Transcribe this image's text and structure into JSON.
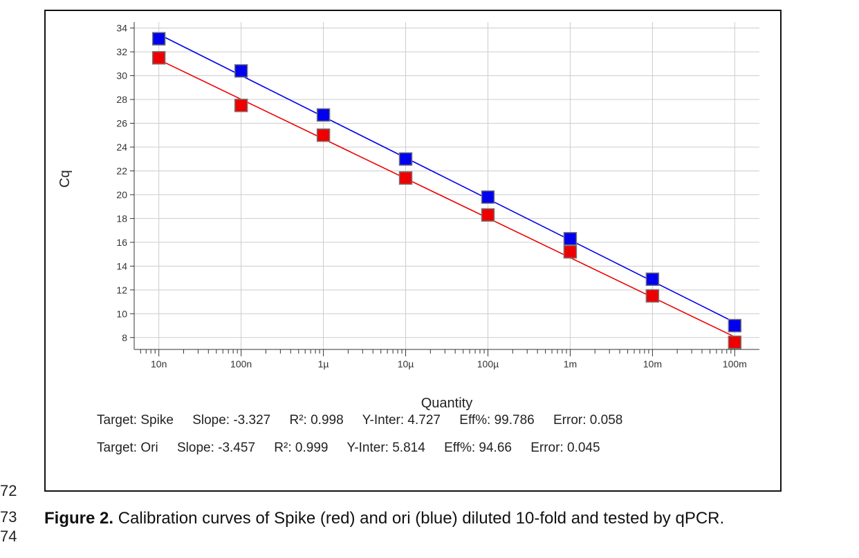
{
  "chart_data": {
    "type": "scatter",
    "xscale": "log",
    "xlabel": "Quantity",
    "ylabel": "Cq",
    "ylim": [
      7,
      34.5
    ],
    "xlim_exp": [
      -8.3,
      -0.7
    ],
    "yticks": [
      8,
      10,
      12,
      14,
      16,
      18,
      20,
      22,
      24,
      26,
      28,
      30,
      32,
      34
    ],
    "xticks": [
      {
        "exp": -8,
        "label": "10n"
      },
      {
        "exp": -7,
        "label": "100n"
      },
      {
        "exp": -6,
        "label": "1µ"
      },
      {
        "exp": -5,
        "label": "10µ"
      },
      {
        "exp": -4,
        "label": "100µ"
      },
      {
        "exp": -3,
        "label": "1m"
      },
      {
        "exp": -2,
        "label": "10m"
      },
      {
        "exp": -1,
        "label": "100m"
      }
    ],
    "series": [
      {
        "name": "Ori",
        "color": "#0000ee",
        "x_exp": [
          -8,
          -7,
          -6,
          -5,
          -4,
          -3,
          -2,
          -1
        ],
        "values": [
          33.1,
          30.4,
          26.7,
          23.0,
          19.8,
          16.3,
          12.9,
          9.0
        ],
        "fit": {
          "slope": -3.457,
          "intercept": 5.814
        }
      },
      {
        "name": "Spike",
        "color": "#ee0000",
        "x_exp": [
          -8,
          -7,
          -6,
          -5,
          -4,
          -3,
          -2,
          -1
        ],
        "values": [
          31.5,
          27.5,
          25.0,
          21.4,
          18.3,
          15.2,
          11.5,
          7.6
        ],
        "fit": {
          "slope": -3.327,
          "intercept": 4.727
        }
      }
    ]
  },
  "stats": [
    {
      "target": "Target: Spike",
      "slope": "Slope: -3.327",
      "r2": "R²: 0.998",
      "yinter": "Y-Inter: 4.727",
      "eff": "Eff%: 99.786",
      "error": "Error: 0.058"
    },
    {
      "target": "Target: Ori",
      "slope": "Slope: -3.457",
      "r2": "R²: 0.999",
      "yinter": "Y-Inter: 5.814",
      "eff": "Eff%: 94.66",
      "error": "Error: 0.045"
    }
  ],
  "line_numbers": [
    "72",
    "73",
    "74"
  ],
  "caption": {
    "label": "Figure 2.",
    "text": " Calibration curves of Spike (red) and ori (blue) diluted 10-fold and tested by qPCR."
  }
}
